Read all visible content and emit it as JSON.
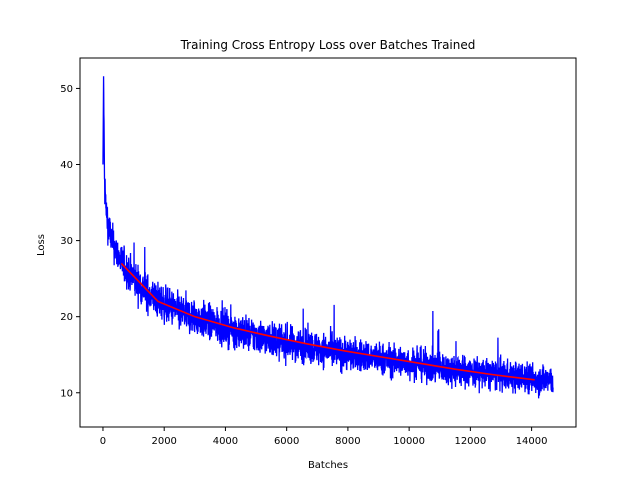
{
  "chart_data": {
    "type": "line",
    "title": "Training Cross Entropy Loss over Batches Trained",
    "xlabel": "Batches",
    "ylabel": "Loss",
    "xlim": [
      -750,
      15450
    ],
    "ylim": [
      5.5,
      54.0
    ],
    "x_ticks": [
      0,
      2000,
      4000,
      6000,
      8000,
      10000,
      12000,
      14000
    ],
    "x_tick_labels": [
      "0",
      "2000",
      "4000",
      "6000",
      "8000",
      "10000",
      "12000",
      "14000"
    ],
    "y_ticks": [
      10,
      20,
      30,
      40,
      50
    ],
    "y_tick_labels": [
      "10",
      "20",
      "30",
      "40",
      "50"
    ],
    "grid": false,
    "colors": {
      "raw": "#0000ff",
      "smoothed": "#ff0000"
    },
    "series": [
      {
        "kind": "raw_batch_loss",
        "color": "#0000ff",
        "x": [
          0,
          20,
          50,
          100,
          200,
          300,
          400,
          500,
          600,
          800,
          1000,
          1200,
          1500,
          1800,
          2000,
          2500,
          3000,
          3500,
          4000,
          4500,
          5000,
          5500,
          6000,
          6500,
          7000,
          7500,
          8000,
          8500,
          9000,
          9500,
          10000,
          10500,
          11000,
          11500,
          12000,
          12500,
          13000,
          13500,
          14000,
          14500,
          14700
        ],
        "y_center": [
          40,
          51.6,
          38,
          34,
          31.5,
          30,
          29,
          28,
          27.2,
          26,
          25,
          24.2,
          23,
          22.1,
          21.6,
          20.6,
          19.9,
          19.2,
          18.6,
          18,
          17.5,
          17,
          16.6,
          16.2,
          15.8,
          15.4,
          15.1,
          14.8,
          14.5,
          14.2,
          13.9,
          13.6,
          13.3,
          13,
          12.7,
          12.5,
          12.3,
          12.1,
          11.9,
          11.7,
          11.6
        ],
        "y_spread": [
          0,
          0,
          4,
          3.2,
          3,
          2.9,
          2.8,
          2.8,
          2.9,
          3,
          3,
          3,
          3,
          3,
          3,
          3,
          3,
          3,
          3,
          2.9,
          2.9,
          2.9,
          2.9,
          2.8,
          2.8,
          2.8,
          2.8,
          2.7,
          2.7,
          2.7,
          2.7,
          2.7,
          2.7,
          2.7,
          2.6,
          2.6,
          2.6,
          2.6,
          2.6,
          2.6,
          2.6
        ],
        "y_min": 7.3,
        "y_max": 51.6
      },
      {
        "kind": "smoothed_loss",
        "color": "#ff0000",
        "x": [
          600,
          1800,
          3000,
          4300,
          5500,
          6700,
          7900,
          9100,
          10300,
          11500,
          12700,
          14100
        ],
        "y": [
          27.0,
          22.0,
          20.0,
          18.5,
          17.4,
          16.4,
          15.5,
          14.7,
          13.9,
          13.1,
          12.4,
          11.7
        ]
      }
    ]
  }
}
